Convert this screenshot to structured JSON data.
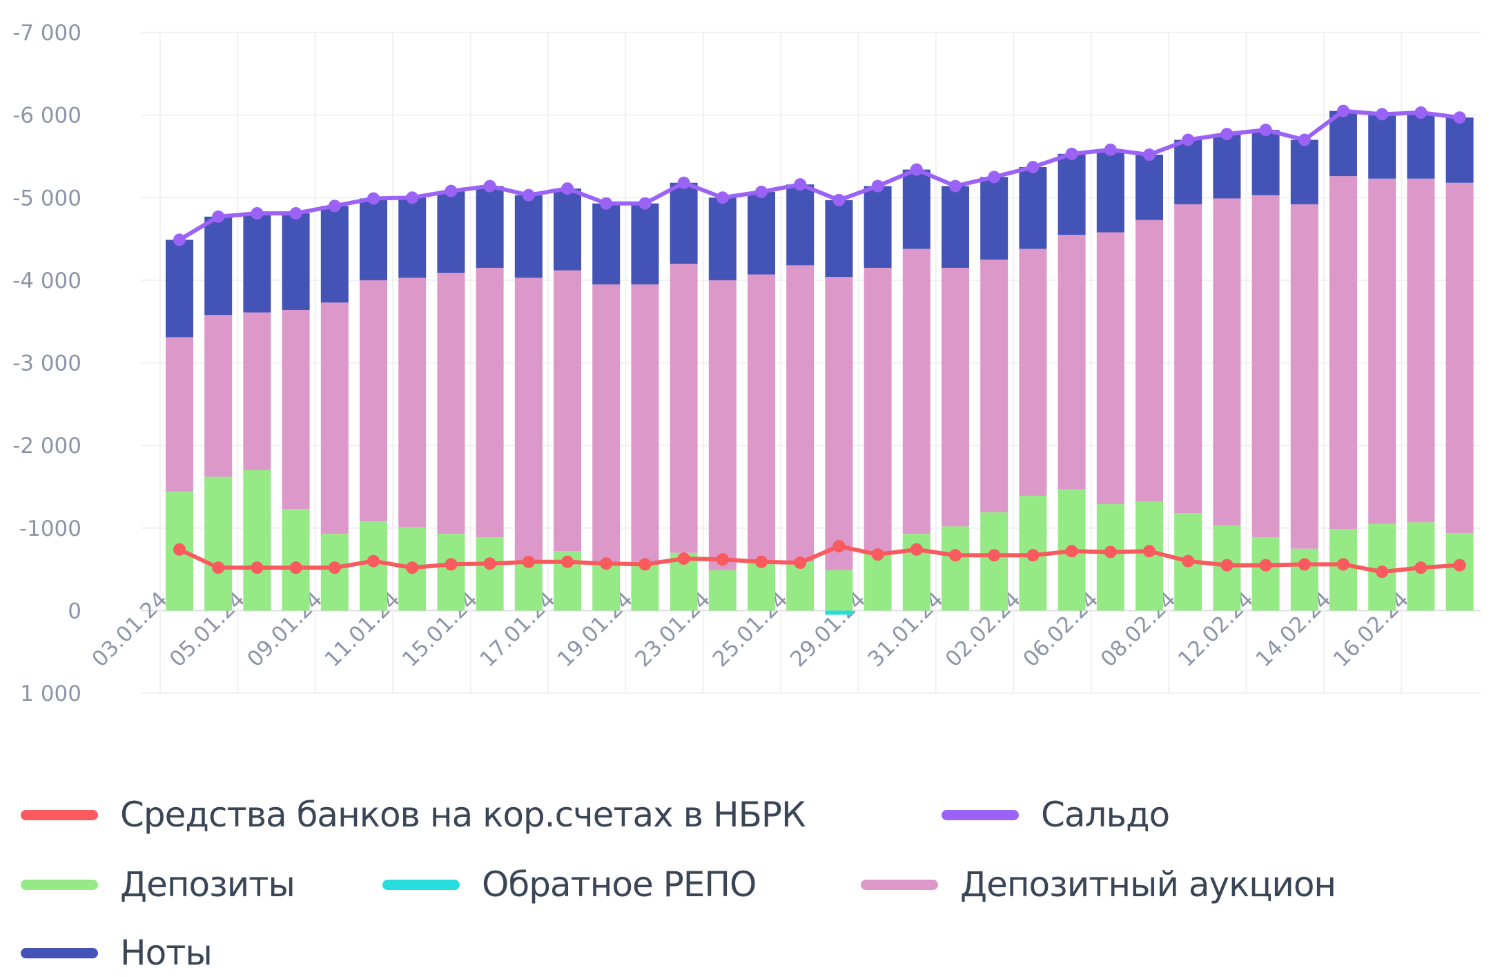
{
  "chart_data": {
    "type": "bar",
    "stacked": true,
    "title": "",
    "xlabel": "",
    "ylabel": "",
    "ylim": [
      1000,
      -7000
    ],
    "y_axis_inverted": true,
    "yticks": [
      {
        "value": -7000,
        "label": "-7 000"
      },
      {
        "value": -6000,
        "label": "-6 000"
      },
      {
        "value": -5000,
        "label": "-5 000"
      },
      {
        "value": -4000,
        "label": "-4 000"
      },
      {
        "value": -3000,
        "label": "-3 000"
      },
      {
        "value": -2000,
        "label": "-2 000"
      },
      {
        "value": -1000,
        "label": "-1000"
      },
      {
        "value": 0,
        "label": "0"
      },
      {
        "value": 1000,
        "label": "1 000"
      }
    ],
    "grid": true,
    "legend_placement": "bottom",
    "categories": [
      "03.01.24",
      "04.01.24",
      "05.01.24",
      "08.01.24",
      "09.01.24",
      "10.01.24",
      "11.01.24",
      "12.01.24",
      "15.01.24",
      "16.01.24",
      "17.01.24",
      "18.01.24",
      "19.01.24",
      "22.01.24",
      "23.01.24",
      "24.01.24",
      "25.01.24",
      "26.01.24",
      "29.01.24",
      "30.01.24",
      "31.01.24",
      "01.02.24",
      "02.02.24",
      "05.02.24",
      "06.02.24",
      "07.02.24",
      "08.02.24",
      "09.02.24",
      "12.02.24",
      "13.02.24",
      "14.02.24",
      "15.02.24",
      "16.02.24",
      "19.02.24"
    ],
    "xtick_labels": [
      "03.01.24",
      "05.01.24",
      "09.01.24",
      "11.01.24",
      "15.01.24",
      "17.01.24",
      "19.01.24",
      "23.01.24",
      "25.01.24",
      "29.01.24",
      "31.01.24",
      "02.02.24",
      "06.02.24",
      "08.02.24",
      "12.02.24",
      "14.02.24",
      "16.02.24"
    ],
    "series": [
      {
        "name": "Средства банков на кор.счетах в НБРК",
        "kind": "line",
        "color": "#f85a5e",
        "values": [
          -740,
          -520,
          -520,
          -520,
          -520,
          -600,
          -520,
          -560,
          -570,
          -590,
          -590,
          -570,
          -560,
          -630,
          -620,
          -590,
          -580,
          -780,
          -680,
          -740,
          -670,
          -670,
          -670,
          -720,
          -710,
          -720,
          -600,
          -550,
          -550,
          -560,
          -560,
          -470,
          -520,
          -550
        ]
      },
      {
        "name": "Сальдо",
        "kind": "line",
        "color": "#9b63f5",
        "values": [
          -4490,
          -4770,
          -4810,
          -4810,
          -4900,
          -4990,
          -5000,
          -5080,
          -5140,
          -5030,
          -5110,
          -4930,
          -4930,
          -5180,
          -5000,
          -5070,
          -5160,
          -4970,
          -5140,
          -5340,
          -5140,
          -5250,
          -5370,
          -5530,
          -5580,
          -5520,
          -5700,
          -5770,
          -5820,
          -5700,
          -6050,
          -6010,
          -6030,
          -5970
        ]
      },
      {
        "name": "Депозиты",
        "kind": "bar",
        "color": "#96ea86",
        "values": [
          -1440,
          -1620,
          -1700,
          -1230,
          -930,
          -1080,
          -1010,
          -930,
          -890,
          -580,
          -720,
          -590,
          -590,
          -700,
          -490,
          -590,
          -590,
          -490,
          -700,
          -930,
          -1020,
          -1190,
          -1390,
          -1470,
          -1290,
          -1320,
          -1180,
          -1030,
          -890,
          -750,
          -990,
          -1050,
          -1070,
          -940
        ]
      },
      {
        "name": "Обратное РЕПО",
        "kind": "bar",
        "color": "#27dcdc",
        "values": [
          0,
          0,
          0,
          0,
          0,
          0,
          0,
          0,
          0,
          0,
          0,
          0,
          0,
          0,
          0,
          0,
          0,
          50,
          0,
          0,
          0,
          0,
          0,
          0,
          0,
          0,
          0,
          0,
          0,
          0,
          0,
          0,
          0,
          0
        ]
      },
      {
        "name": "Депозитный аукцион",
        "kind": "bar",
        "color": "#dc98c8",
        "values": [
          -1870,
          -1960,
          -1910,
          -2410,
          -2800,
          -2920,
          -3020,
          -3160,
          -3260,
          -3450,
          -3400,
          -3360,
          -3360,
          -3500,
          -3510,
          -3480,
          -3590,
          -3550,
          -3450,
          -3450,
          -3130,
          -3060,
          -2990,
          -3080,
          -3290,
          -3410,
          -3740,
          -3960,
          -4140,
          -4170,
          -4270,
          -4180,
          -4160,
          -4240
        ]
      },
      {
        "name": "Ноты",
        "kind": "bar",
        "color": "#4353b6",
        "values": [
          -1180,
          -1190,
          -1200,
          -1170,
          -1170,
          -990,
          -970,
          -990,
          -990,
          -1000,
          -990,
          -980,
          -980,
          -980,
          -1000,
          -1000,
          -980,
          -930,
          -990,
          -960,
          -990,
          -1000,
          -990,
          -980,
          -1000,
          -790,
          -780,
          -780,
          -790,
          -780,
          -790,
          -780,
          -800,
          -790
        ]
      }
    ],
    "legend": [
      {
        "label": "Средства банков на кор.счетах в НБРК",
        "color": "#f85a5e"
      },
      {
        "label": "Сальдо",
        "color": "#9b63f5"
      },
      {
        "label": "Депозиты",
        "color": "#96ea86"
      },
      {
        "label": "Обратное РЕПО",
        "color": "#27dcdc"
      },
      {
        "label": "Депозитный аукцион",
        "color": "#dc98c8"
      },
      {
        "label": "Ноты",
        "color": "#4353b6"
      }
    ]
  }
}
